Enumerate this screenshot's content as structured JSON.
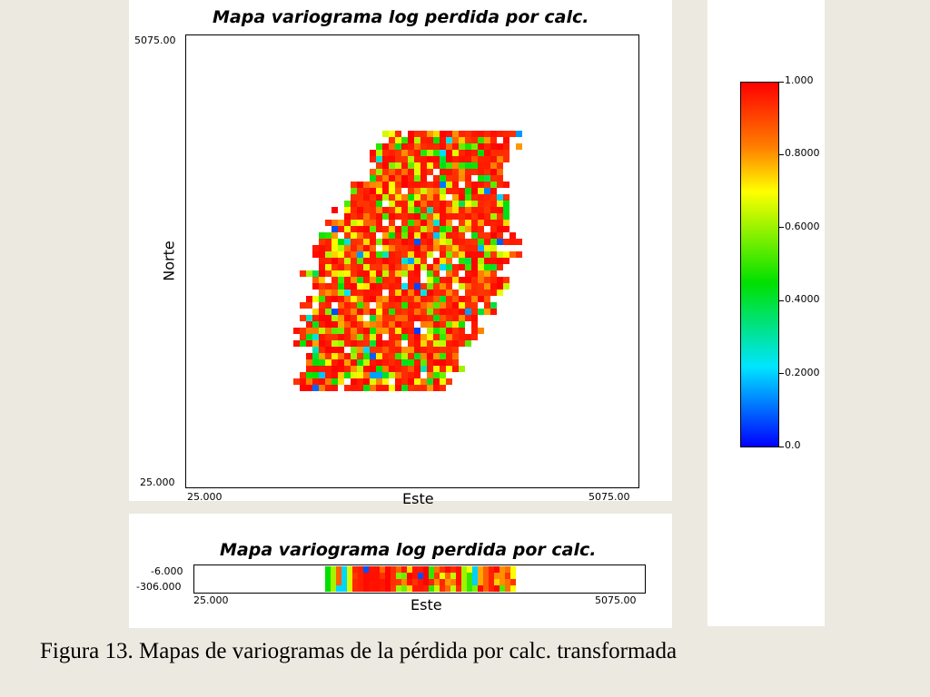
{
  "caption": "Figura 13. Mapas de variogramas de la pérdida por calc. transformada",
  "chart_data": [
    {
      "type": "heatmap",
      "title": "Mapa variograma log perdida por calc.",
      "xlabel": "Este",
      "ylabel": "Norte",
      "xlim": [
        25.0,
        5075.0
      ],
      "ylim": [
        25.0,
        5075.0
      ],
      "x_ticks": [
        "25.000",
        "5075.00"
      ],
      "y_ticks": [
        "5075.00",
        "25.000"
      ],
      "grid": false
    },
    {
      "type": "heatmap",
      "title": "Mapa variograma log perdida por calc.",
      "xlabel": "Este",
      "ylabel": "",
      "xlim": [
        25.0,
        5075.0
      ],
      "ylim": [
        -306.0,
        -6.0
      ],
      "x_ticks": [
        "25.000",
        "5075.00"
      ],
      "y_ticks": [
        "-6.000",
        "-306.000"
      ],
      "grid": false
    }
  ],
  "colorbar": {
    "range": [
      0.0,
      1.0
    ],
    "ticks": [
      "1.000",
      "0.8000",
      "0.6000",
      "0.4000",
      "0.2000",
      "0.0"
    ],
    "colors": [
      "#0000ff",
      "#00e5ff",
      "#00e000",
      "#ffff00",
      "#ff0000"
    ]
  }
}
